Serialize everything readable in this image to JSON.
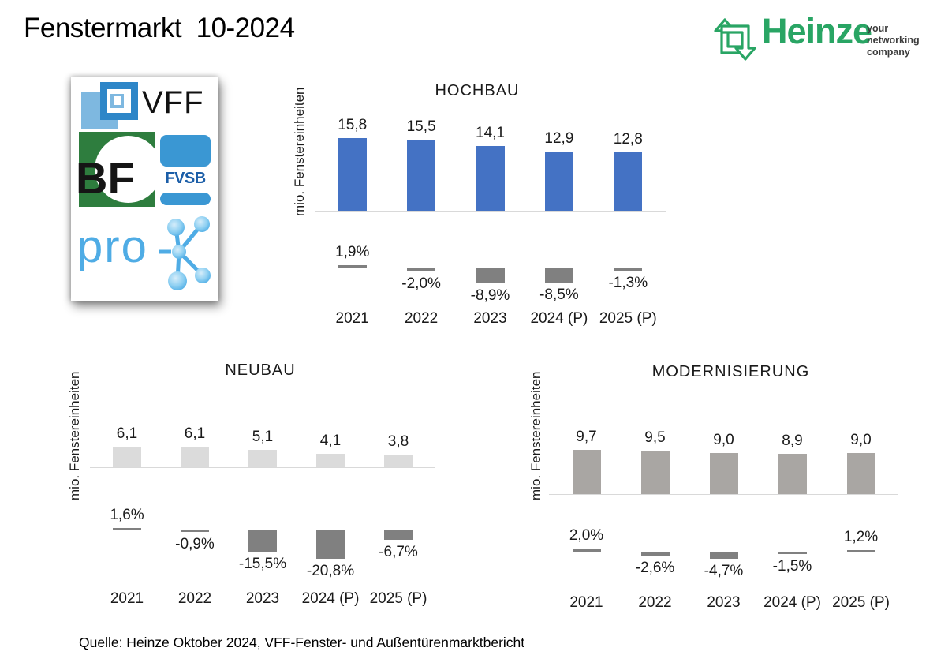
{
  "page": {
    "title": "Fenstermarkt  10-2024",
    "source_note": "Quelle: Heinze Oktober 2024, VFF-Fenster- und Außentürenmarktbericht"
  },
  "brand": {
    "name": "Heinze",
    "tagline_lines": [
      "your",
      "networking",
      "company"
    ],
    "accent_green": "#29A564"
  },
  "association_logos": {
    "vff": "VFF",
    "bf": "BF",
    "fvsb": "FVSB",
    "pro": "pro"
  },
  "chart_data": [
    {
      "id": "hochbau",
      "type": "bar",
      "title": "HOCHBAU",
      "ylabel": "mio. Fenstereinheiten",
      "categories": [
        "2021",
        "2022",
        "2023",
        "2024 (P)",
        "2025 (P)"
      ],
      "series": [
        {
          "role": "units_mio",
          "values": [
            15.8,
            15.5,
            14.1,
            12.9,
            12.8
          ],
          "labels": [
            "15,8",
            "15,5",
            "14,1",
            "12,9",
            "12,8"
          ],
          "color": "#4472C4"
        },
        {
          "role": "change_pct",
          "values": [
            1.9,
            -2.0,
            -8.9,
            -8.5,
            -1.3
          ],
          "labels": [
            "1,9%",
            "-2,0%",
            "-8,9%",
            "-8,5%",
            "-1,3%"
          ],
          "color": "#808080"
        }
      ],
      "legend": "none",
      "grid": false
    },
    {
      "id": "neubau",
      "type": "bar",
      "title": "NEUBAU",
      "ylabel": "mio. Fenstereinheiten",
      "categories": [
        "2021",
        "2022",
        "2023",
        "2024 (P)",
        "2025 (P)"
      ],
      "series": [
        {
          "role": "units_mio",
          "values": [
            6.1,
            6.1,
            5.1,
            4.1,
            3.8
          ],
          "labels": [
            "6,1",
            "6,1",
            "5,1",
            "4,1",
            "3,8"
          ],
          "color": "#DBDBDB"
        },
        {
          "role": "change_pct",
          "values": [
            1.6,
            -0.9,
            -15.5,
            -20.8,
            -6.7
          ],
          "labels": [
            "1,6%",
            "-0,9%",
            "-15,5%",
            "-20,8%",
            "-6,7%"
          ],
          "color": "#808080"
        }
      ],
      "legend": "none",
      "grid": false
    },
    {
      "id": "modernisierung",
      "type": "bar",
      "title": "MODERNISIERUNG",
      "ylabel": "mio. Fenstereinheiten",
      "categories": [
        "2021",
        "2022",
        "2023",
        "2024 (P)",
        "2025 (P)"
      ],
      "series": [
        {
          "role": "units_mio",
          "values": [
            9.7,
            9.5,
            9.0,
            8.9,
            9.0
          ],
          "labels": [
            "9,7",
            "9,5",
            "9,0",
            "8,9",
            "9,0"
          ],
          "color": "#A9A6A3"
        },
        {
          "role": "change_pct",
          "values": [
            2.0,
            -2.6,
            -4.7,
            -1.5,
            1.2
          ],
          "labels": [
            "2,0%",
            "-2,6%",
            "-4,7%",
            "-1,5%",
            "1,2%"
          ],
          "color": "#808080"
        }
      ],
      "legend": "none",
      "grid": false
    }
  ]
}
